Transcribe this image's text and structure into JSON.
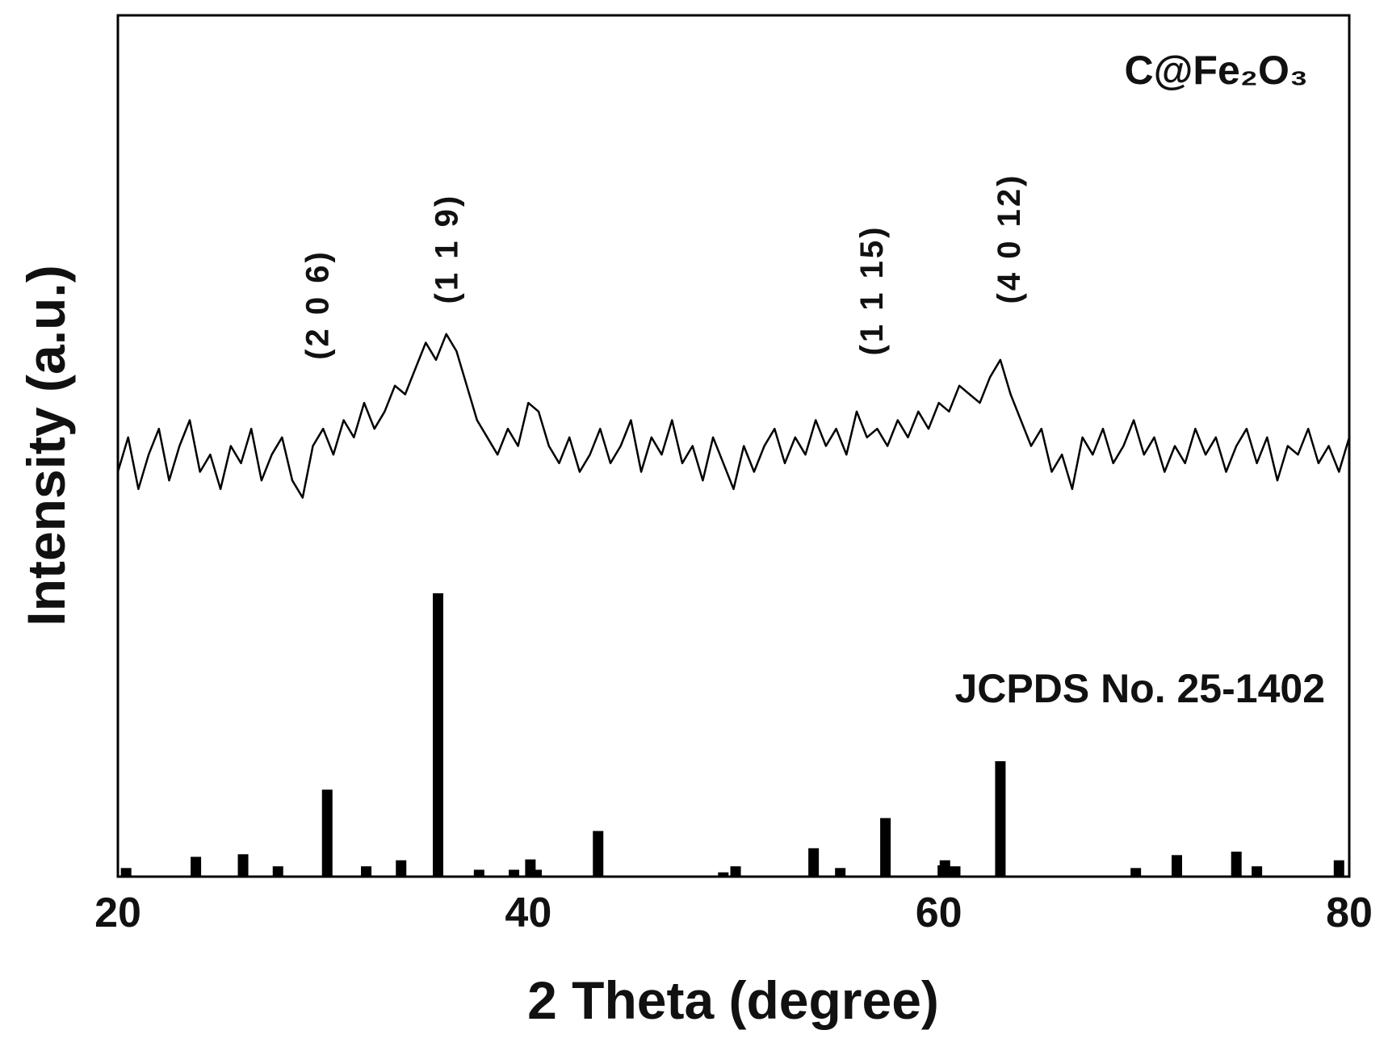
{
  "chart_data": {
    "type": "line",
    "xlabel": "2 Theta (degree)",
    "ylabel": "Intensity (a.u.)",
    "xlim": [
      20,
      80
    ],
    "xticks": [
      20,
      40,
      60,
      80
    ],
    "ylim": [
      0,
      100
    ],
    "series": [
      {
        "name": "C@Fe₂O₃",
        "type": "line",
        "color": "#000000",
        "x": [
          20,
          20.5,
          21,
          21.5,
          22,
          22.5,
          23,
          23.5,
          24,
          24.5,
          25,
          25.5,
          26,
          26.5,
          27,
          27.5,
          28,
          28.5,
          29,
          29.5,
          30,
          30.5,
          31,
          31.5,
          32,
          32.5,
          33,
          33.5,
          34,
          34.5,
          35,
          35.5,
          36,
          36.5,
          37,
          37.5,
          38,
          38.5,
          39,
          39.5,
          40,
          40.5,
          41,
          41.5,
          42,
          42.5,
          43,
          43.5,
          44,
          44.5,
          45,
          45.5,
          46,
          46.5,
          47,
          47.5,
          48,
          48.5,
          49,
          49.5,
          50,
          50.5,
          51,
          51.5,
          52,
          52.5,
          53,
          53.5,
          54,
          54.5,
          55,
          55.5,
          56,
          56.5,
          57,
          57.5,
          58,
          58.5,
          59,
          59.5,
          60,
          60.5,
          61,
          61.5,
          62,
          62.5,
          63,
          63.5,
          64,
          64.5,
          65,
          65.5,
          66,
          66.5,
          67,
          67.5,
          68,
          68.5,
          69,
          69.5,
          70,
          70.5,
          71,
          71.5,
          72,
          72.5,
          73,
          73.5,
          74,
          74.5,
          75,
          75.5,
          76,
          76.5,
          77,
          77.5,
          78,
          78.5,
          79,
          79.5,
          80
        ],
        "values": [
          47,
          51,
          45,
          49,
          52,
          46,
          50,
          53,
          47,
          49,
          45,
          50,
          48,
          52,
          46,
          49,
          51,
          46,
          44,
          50,
          52,
          49,
          53,
          51,
          55,
          52,
          54,
          57,
          56,
          59,
          62,
          60,
          63,
          61,
          57,
          53,
          51,
          49,
          52,
          50,
          55,
          54,
          50,
          48,
          51,
          47,
          49,
          52,
          48,
          50,
          53,
          47,
          51,
          49,
          53,
          48,
          50,
          46,
          51,
          48,
          45,
          50,
          47,
          50,
          52,
          48,
          51,
          49,
          53,
          50,
          52,
          49,
          54,
          51,
          52,
          50,
          53,
          51,
          54,
          52,
          55,
          54,
          57,
          56,
          55,
          58,
          60,
          56,
          53,
          50,
          52,
          47,
          49,
          45,
          51,
          49,
          52,
          48,
          50,
          53,
          49,
          51,
          47,
          50,
          48,
          52,
          49,
          51,
          47,
          50,
          52,
          48,
          51,
          46,
          50,
          49,
          52,
          48,
          50,
          47,
          51
        ]
      },
      {
        "name": "JCPDS No. 25-1402",
        "type": "stem",
        "color": "#000000",
        "x": [
          20.4,
          23.8,
          26.1,
          27.8,
          30.2,
          32.1,
          33.8,
          35.6,
          37.6,
          39.3,
          40.1,
          40.4,
          43.4,
          49.5,
          50.1,
          53.9,
          55.2,
          57.4,
          60.3,
          60.8,
          63.0,
          69.6,
          71.6,
          74.5,
          75.5,
          79.5
        ],
        "values": [
          1.0,
          2.3,
          2.6,
          1.2,
          10.1,
          1.2,
          1.9,
          32.9,
          0.8,
          0.8,
          2.0,
          0.8,
          5.3,
          0.5,
          1.2,
          3.3,
          1.0,
          6.8,
          1.9,
          1.2,
          13.4,
          1.0,
          2.5,
          2.9,
          1.2,
          1.9
        ]
      }
    ],
    "annotations": [
      {
        "text": "(2 0 6)",
        "x": 29.7,
        "y": 60
      },
      {
        "text": "(1 1 9)",
        "x": 36.0,
        "y": 66.5
      },
      {
        "text": "(1 1 15)",
        "x": 56.7,
        "y": 60.5
      },
      {
        "text": "(4 0 12)",
        "x": 63.4,
        "y": 66.5
      }
    ]
  }
}
